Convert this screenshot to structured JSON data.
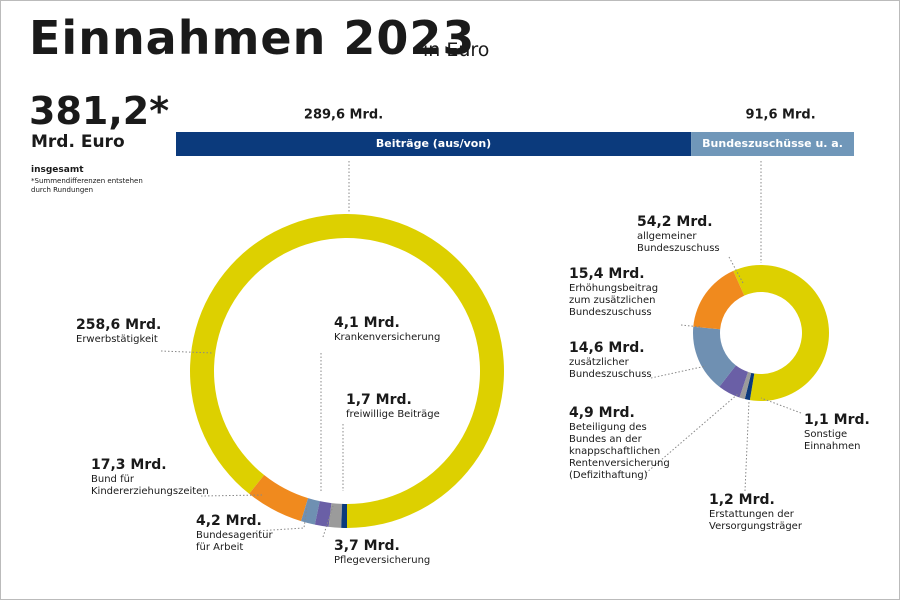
{
  "title": "Einnahmen 2023",
  "title_note": "in Euro",
  "chart_data": [
    {
      "type": "bar",
      "orientation": "horizontal",
      "stacked": true,
      "total": 381.2,
      "total_label": "381,2*",
      "total_unit": "Mrd. Euro",
      "total_caption": "insgesamt",
      "footnote": "*Summendifferenzen entstehen\n durch Rundungen",
      "categories": [
        "Beiträge (aus/von)",
        "Bundeszuschüsse u. a."
      ],
      "values": [
        289.6,
        91.6
      ],
      "value_labels": [
        "289,6 Mrd.",
        "91,6 Mrd."
      ],
      "colors": [
        "#0b3a7c",
        "#7097b9"
      ]
    },
    {
      "type": "pie",
      "donut": true,
      "categories": [
        "Erwerbstätigkeit",
        "Bund für\nKindererziehungszeiten",
        "Bundesagentur\nfür Arbeit",
        "Krankenversicherung",
        "Pflegeversicherung",
        "freiwillige Beiträge"
      ],
      "values": [
        258.6,
        17.3,
        4.2,
        4.1,
        3.7,
        1.7
      ],
      "value_labels": [
        "258,6 Mrd.",
        "17,3 Mrd.",
        "4,2 Mrd.",
        "4,1 Mrd.",
        "3,7 Mrd.",
        "1,7 Mrd."
      ],
      "colors": [
        "#ddd000",
        "#f08a1e",
        "#6f90b2",
        "#6a5fa6",
        "#9b9b9b",
        "#0b3a7c"
      ]
    },
    {
      "type": "pie",
      "donut": true,
      "categories": [
        "allgemeiner\nBundeszuschuss",
        "Sonstige\nEinnahmen",
        "Erstattungen der\nVersorgungsträger",
        "Beteiligung des\nBundes an der\nknappschaftlichen\nRentenversicherung\n(Defizithaftung)",
        "zusätzlicher\nBundeszuschuss",
        "Erhöhungsbeitrag\nzum zusätzlichen\nBundeszuschuss"
      ],
      "values": [
        54.2,
        1.1,
        1.2,
        4.9,
        14.6,
        15.4
      ],
      "value_labels": [
        "54,2 Mrd.",
        "1,1 Mrd.",
        "1,2 Mrd.",
        "4,9 Mrd.",
        "14,6 Mrd.",
        "15,4 Mrd."
      ],
      "colors": [
        "#ddd000",
        "#0b3a7c",
        "#9b9b9b",
        "#6a5fa6",
        "#6f90b2",
        "#f08a1e"
      ]
    }
  ]
}
